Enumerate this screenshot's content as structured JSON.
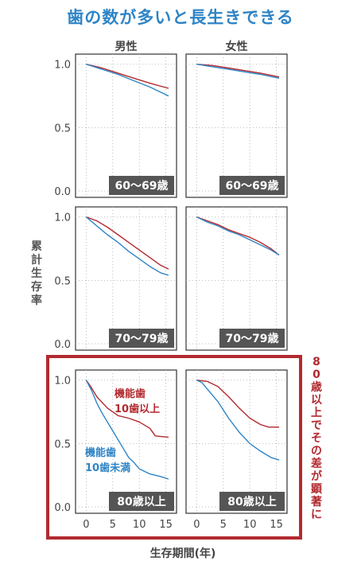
{
  "title": "歯の数が多いと長生きできる",
  "chart_data": {
    "type": "line",
    "columns": [
      "男性",
      "女性"
    ],
    "xlabel": "生存期間(年)",
    "ylabel": "累計生存率",
    "xlim": [
      -2,
      17
    ],
    "ylim": [
      -0.05,
      1.08
    ],
    "xticks": [
      0,
      5,
      10,
      15
    ],
    "yticks": [
      0.0,
      0.5,
      1.0
    ],
    "ytick_labels": [
      "0.0",
      "0.5",
      "1.0"
    ],
    "grid": true,
    "colors": {
      "functional_10plus": "#b22a2f",
      "functional_under10": "#2e84c6",
      "highlight_border": "#b22a2f",
      "age_badge": "#555555"
    },
    "annotation_red": [
      "機能歯",
      "10歯以上"
    ],
    "annotation_blue": [
      "機能歯",
      "10歯未満"
    ],
    "highlight_note": "80歳以上でその差が顕著に",
    "rows": [
      {
        "age_group": "60〜69歳",
        "panels": [
          {
            "sex": "男性",
            "series": [
              {
                "name": "機能歯10歯以上",
                "x": [
                  0,
                  3,
                  6,
                  9,
                  12,
                  15.5
                ],
                "y": [
                  1.0,
                  0.97,
                  0.93,
                  0.89,
                  0.85,
                  0.81
                ]
              },
              {
                "name": "機能歯10歯未満",
                "x": [
                  0,
                  3,
                  6,
                  9,
                  12,
                  15.5
                ],
                "y": [
                  1.0,
                  0.96,
                  0.92,
                  0.87,
                  0.82,
                  0.75
                ]
              }
            ]
          },
          {
            "sex": "女性",
            "series": [
              {
                "name": "機能歯10歯以上",
                "x": [
                  0,
                  3,
                  6,
                  9,
                  12,
                  15.5
                ],
                "y": [
                  1.0,
                  0.99,
                  0.97,
                  0.95,
                  0.93,
                  0.9
                ]
              },
              {
                "name": "機能歯10歯未満",
                "x": [
                  0,
                  3,
                  6,
                  9,
                  12,
                  15.5
                ],
                "y": [
                  1.0,
                  0.98,
                  0.96,
                  0.94,
                  0.92,
                  0.89
                ]
              }
            ]
          }
        ]
      },
      {
        "age_group": "70〜79歳",
        "panels": [
          {
            "sex": "男性",
            "series": [
              {
                "name": "機能歯10歯以上",
                "x": [
                  0,
                  2,
                  4,
                  6,
                  8,
                  10,
                  12,
                  14,
                  15.5
                ],
                "y": [
                  1.0,
                  0.97,
                  0.92,
                  0.86,
                  0.8,
                  0.74,
                  0.68,
                  0.62,
                  0.59
                ]
              },
              {
                "name": "機能歯10歯未満",
                "x": [
                  0,
                  2,
                  4,
                  6,
                  8,
                  10,
                  12,
                  14,
                  15.5
                ],
                "y": [
                  1.0,
                  0.93,
                  0.86,
                  0.8,
                  0.73,
                  0.67,
                  0.61,
                  0.56,
                  0.54
                ]
              }
            ]
          },
          {
            "sex": "女性",
            "series": [
              {
                "name": "機能歯10歯以上",
                "x": [
                  0,
                  2,
                  4,
                  6,
                  8,
                  10,
                  12,
                  14,
                  15.5
                ],
                "y": [
                  1.0,
                  0.97,
                  0.94,
                  0.9,
                  0.87,
                  0.84,
                  0.8,
                  0.75,
                  0.7
                ]
              },
              {
                "name": "機能歯10歯未満",
                "x": [
                  0,
                  2,
                  4,
                  6,
                  8,
                  10,
                  12,
                  14,
                  15.5
                ],
                "y": [
                  1.0,
                  0.96,
                  0.93,
                  0.89,
                  0.86,
                  0.82,
                  0.78,
                  0.74,
                  0.7
                ]
              }
            ]
          }
        ]
      },
      {
        "age_group": "80歳以上",
        "panels": [
          {
            "sex": "男性",
            "series": [
              {
                "name": "機能歯10歯以上",
                "x": [
                  0,
                  1,
                  2,
                  4,
                  6,
                  8,
                  10,
                  12,
                  13,
                  15.5
                ],
                "y": [
                  1.0,
                  0.94,
                  0.87,
                  0.78,
                  0.72,
                  0.7,
                  0.67,
                  0.62,
                  0.56,
                  0.55
                ]
              },
              {
                "name": "機能歯10歯未満",
                "x": [
                  0,
                  1,
                  2,
                  3,
                  5,
                  7,
                  8,
                  9,
                  10,
                  12,
                  14,
                  15.5
                ],
                "y": [
                  1.0,
                  0.92,
                  0.82,
                  0.74,
                  0.6,
                  0.46,
                  0.39,
                  0.35,
                  0.3,
                  0.26,
                  0.24,
                  0.22
                ]
              }
            ]
          },
          {
            "sex": "女性",
            "series": [
              {
                "name": "機能歯10歯以上",
                "x": [
                  0,
                  2,
                  4,
                  6,
                  8,
                  10,
                  12,
                  13.5,
                  15.5
                ],
                "y": [
                  1.0,
                  0.99,
                  0.95,
                  0.87,
                  0.78,
                  0.7,
                  0.65,
                  0.63,
                  0.63
                ]
              },
              {
                "name": "機能歯10歯未満",
                "x": [
                  0,
                  1,
                  2,
                  4,
                  6,
                  8,
                  10,
                  12,
                  14,
                  15.5
                ],
                "y": [
                  1.0,
                  0.98,
                  0.93,
                  0.83,
                  0.7,
                  0.59,
                  0.5,
                  0.44,
                  0.39,
                  0.37
                ]
              }
            ]
          }
        ]
      }
    ]
  }
}
